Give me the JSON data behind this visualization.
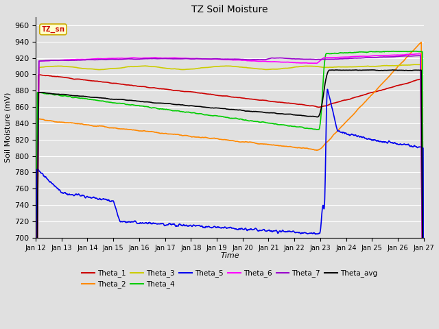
{
  "title": "TZ Soil Moisture",
  "xlabel": "Time",
  "ylabel": "Soil Moisture (mV)",
  "ylim": [
    700,
    970
  ],
  "yticks": [
    700,
    720,
    740,
    760,
    780,
    800,
    820,
    840,
    860,
    880,
    900,
    920,
    940,
    960
  ],
  "xlim": [
    0,
    360
  ],
  "num_points": 1440,
  "days": [
    "Jan 12",
    "Jan 13",
    "Jan 14",
    "Jan 15",
    "Jan 16",
    "Jan 17",
    "Jan 18",
    "Jan 19",
    "Jan 20",
    "Jan 21",
    "Jan 22",
    "Jan 23",
    "Jan 24",
    "Jan 25",
    "Jan 26",
    "Jan 27"
  ],
  "day_ticks": [
    0,
    24,
    48,
    72,
    96,
    120,
    144,
    168,
    192,
    216,
    240,
    264,
    288,
    312,
    336,
    360
  ],
  "background_color": "#e0e0e0",
  "plot_bg_color": "#e0e0e0",
  "grid_color": "#ffffff",
  "series": {
    "Theta_1": {
      "color": "#cc0000",
      "lw": 1.2
    },
    "Theta_2": {
      "color": "#ff8800",
      "lw": 1.2
    },
    "Theta_3": {
      "color": "#cccc00",
      "lw": 1.2
    },
    "Theta_4": {
      "color": "#00cc00",
      "lw": 1.2
    },
    "Theta_5": {
      "color": "#0000ee",
      "lw": 1.2
    },
    "Theta_6": {
      "color": "#ff00ff",
      "lw": 1.2
    },
    "Theta_7": {
      "color": "#9900cc",
      "lw": 1.2
    },
    "Theta_avg": {
      "color": "#000000",
      "lw": 1.2
    }
  },
  "label_box": {
    "text": "TZ_sm",
    "bg": "#ffffcc",
    "edge": "#ccaa00",
    "text_color": "#cc0000",
    "fontsize": 8
  }
}
